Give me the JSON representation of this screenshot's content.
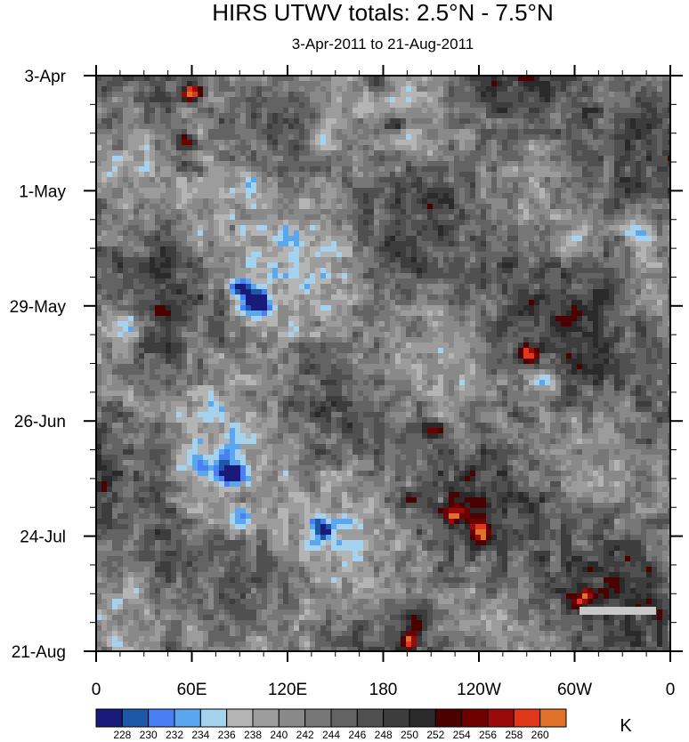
{
  "chart_data": {
    "type": "heatmap",
    "title": "HIRS UTWV totals: 2.5°N - 7.5°N",
    "subtitle": "3-Apr-2011 to 21-Aug-2011",
    "x_ticks": [
      {
        "label": "0",
        "lon": 0
      },
      {
        "label": "60E",
        "lon": 60
      },
      {
        "label": "120E",
        "lon": 120
      },
      {
        "label": "180",
        "lon": 180
      },
      {
        "label": "120W",
        "lon": 240
      },
      {
        "label": "60W",
        "lon": 300
      },
      {
        "label": "0",
        "lon": 360
      }
    ],
    "x_range_deg_lon": [
      0,
      360
    ],
    "y_ticks": [
      {
        "label": "3-Apr",
        "day": 0
      },
      {
        "label": "1-May",
        "day": 28
      },
      {
        "label": "29-May",
        "day": 56
      },
      {
        "label": "26-Jun",
        "day": 84
      },
      {
        "label": "24-Jul",
        "day": 112
      },
      {
        "label": "21-Aug",
        "day": 140
      }
    ],
    "y_range_days": [
      0,
      140
    ],
    "levels": [
      228,
      230,
      232,
      234,
      236,
      238,
      240,
      242,
      244,
      246,
      248,
      250,
      252,
      254,
      256,
      258,
      260
    ],
    "palette": [
      "#1a1a7a",
      "#1d57a8",
      "#4a7ef5",
      "#5aa6ef",
      "#a5d2ef",
      "#b4b4b4",
      "#9c9c9c",
      "#898989",
      "#777777",
      "#636363",
      "#505050",
      "#3d3d3d",
      "#2a2a2a",
      "#4c0000",
      "#6e0000",
      "#9b0a0a",
      "#e0381a",
      "#e0712a"
    ],
    "units": "K",
    "features": {
      "warm_spots": [
        {
          "lon": 60,
          "day": 4,
          "strength": 2.2
        },
        {
          "lon": 56,
          "day": 16,
          "strength": 1.4
        },
        {
          "lon": 58,
          "day": 22,
          "strength": 1.2
        },
        {
          "lon": 185,
          "day": 12,
          "strength": 1.2
        },
        {
          "lon": 175,
          "day": 2,
          "strength": 1.1
        },
        {
          "lon": 270,
          "day": 68,
          "strength": 1.5
        },
        {
          "lon": 210,
          "day": 86,
          "strength": 1.5
        },
        {
          "lon": 225,
          "day": 107,
          "strength": 1.3
        },
        {
          "lon": 240,
          "day": 111,
          "strength": 1.3
        },
        {
          "lon": 200,
          "day": 132,
          "strength": 1.3
        },
        {
          "lon": 197,
          "day": 137,
          "strength": 1.6
        },
        {
          "lon": 305,
          "day": 127,
          "strength": 1.2
        },
        {
          "lon": 195,
          "day": 103,
          "strength": 0.9
        },
        {
          "lon": 250,
          "day": 63,
          "strength": 0.9
        }
      ],
      "moist_spots": [
        {
          "lon": 100,
          "day": 55,
          "strength": 1.8
        },
        {
          "lon": 90,
          "day": 52,
          "strength": 1.5
        },
        {
          "lon": 85,
          "day": 97,
          "strength": 1.5
        },
        {
          "lon": 93,
          "day": 108,
          "strength": 1.3
        },
        {
          "lon": 140,
          "day": 110,
          "strength": 1.4
        },
        {
          "lon": 280,
          "day": 74,
          "strength": 1.4
        },
        {
          "lon": 95,
          "day": 27,
          "strength": 1.2
        },
        {
          "lon": 65,
          "day": 95,
          "strength": 1.2
        },
        {
          "lon": 20,
          "day": 60,
          "strength": 1.2
        },
        {
          "lon": 140,
          "day": 15,
          "strength": 1.0
        },
        {
          "lon": 340,
          "day": 38,
          "strength": 1.0
        },
        {
          "lon": 300,
          "day": 40,
          "strength": 0.9
        }
      ]
    }
  }
}
